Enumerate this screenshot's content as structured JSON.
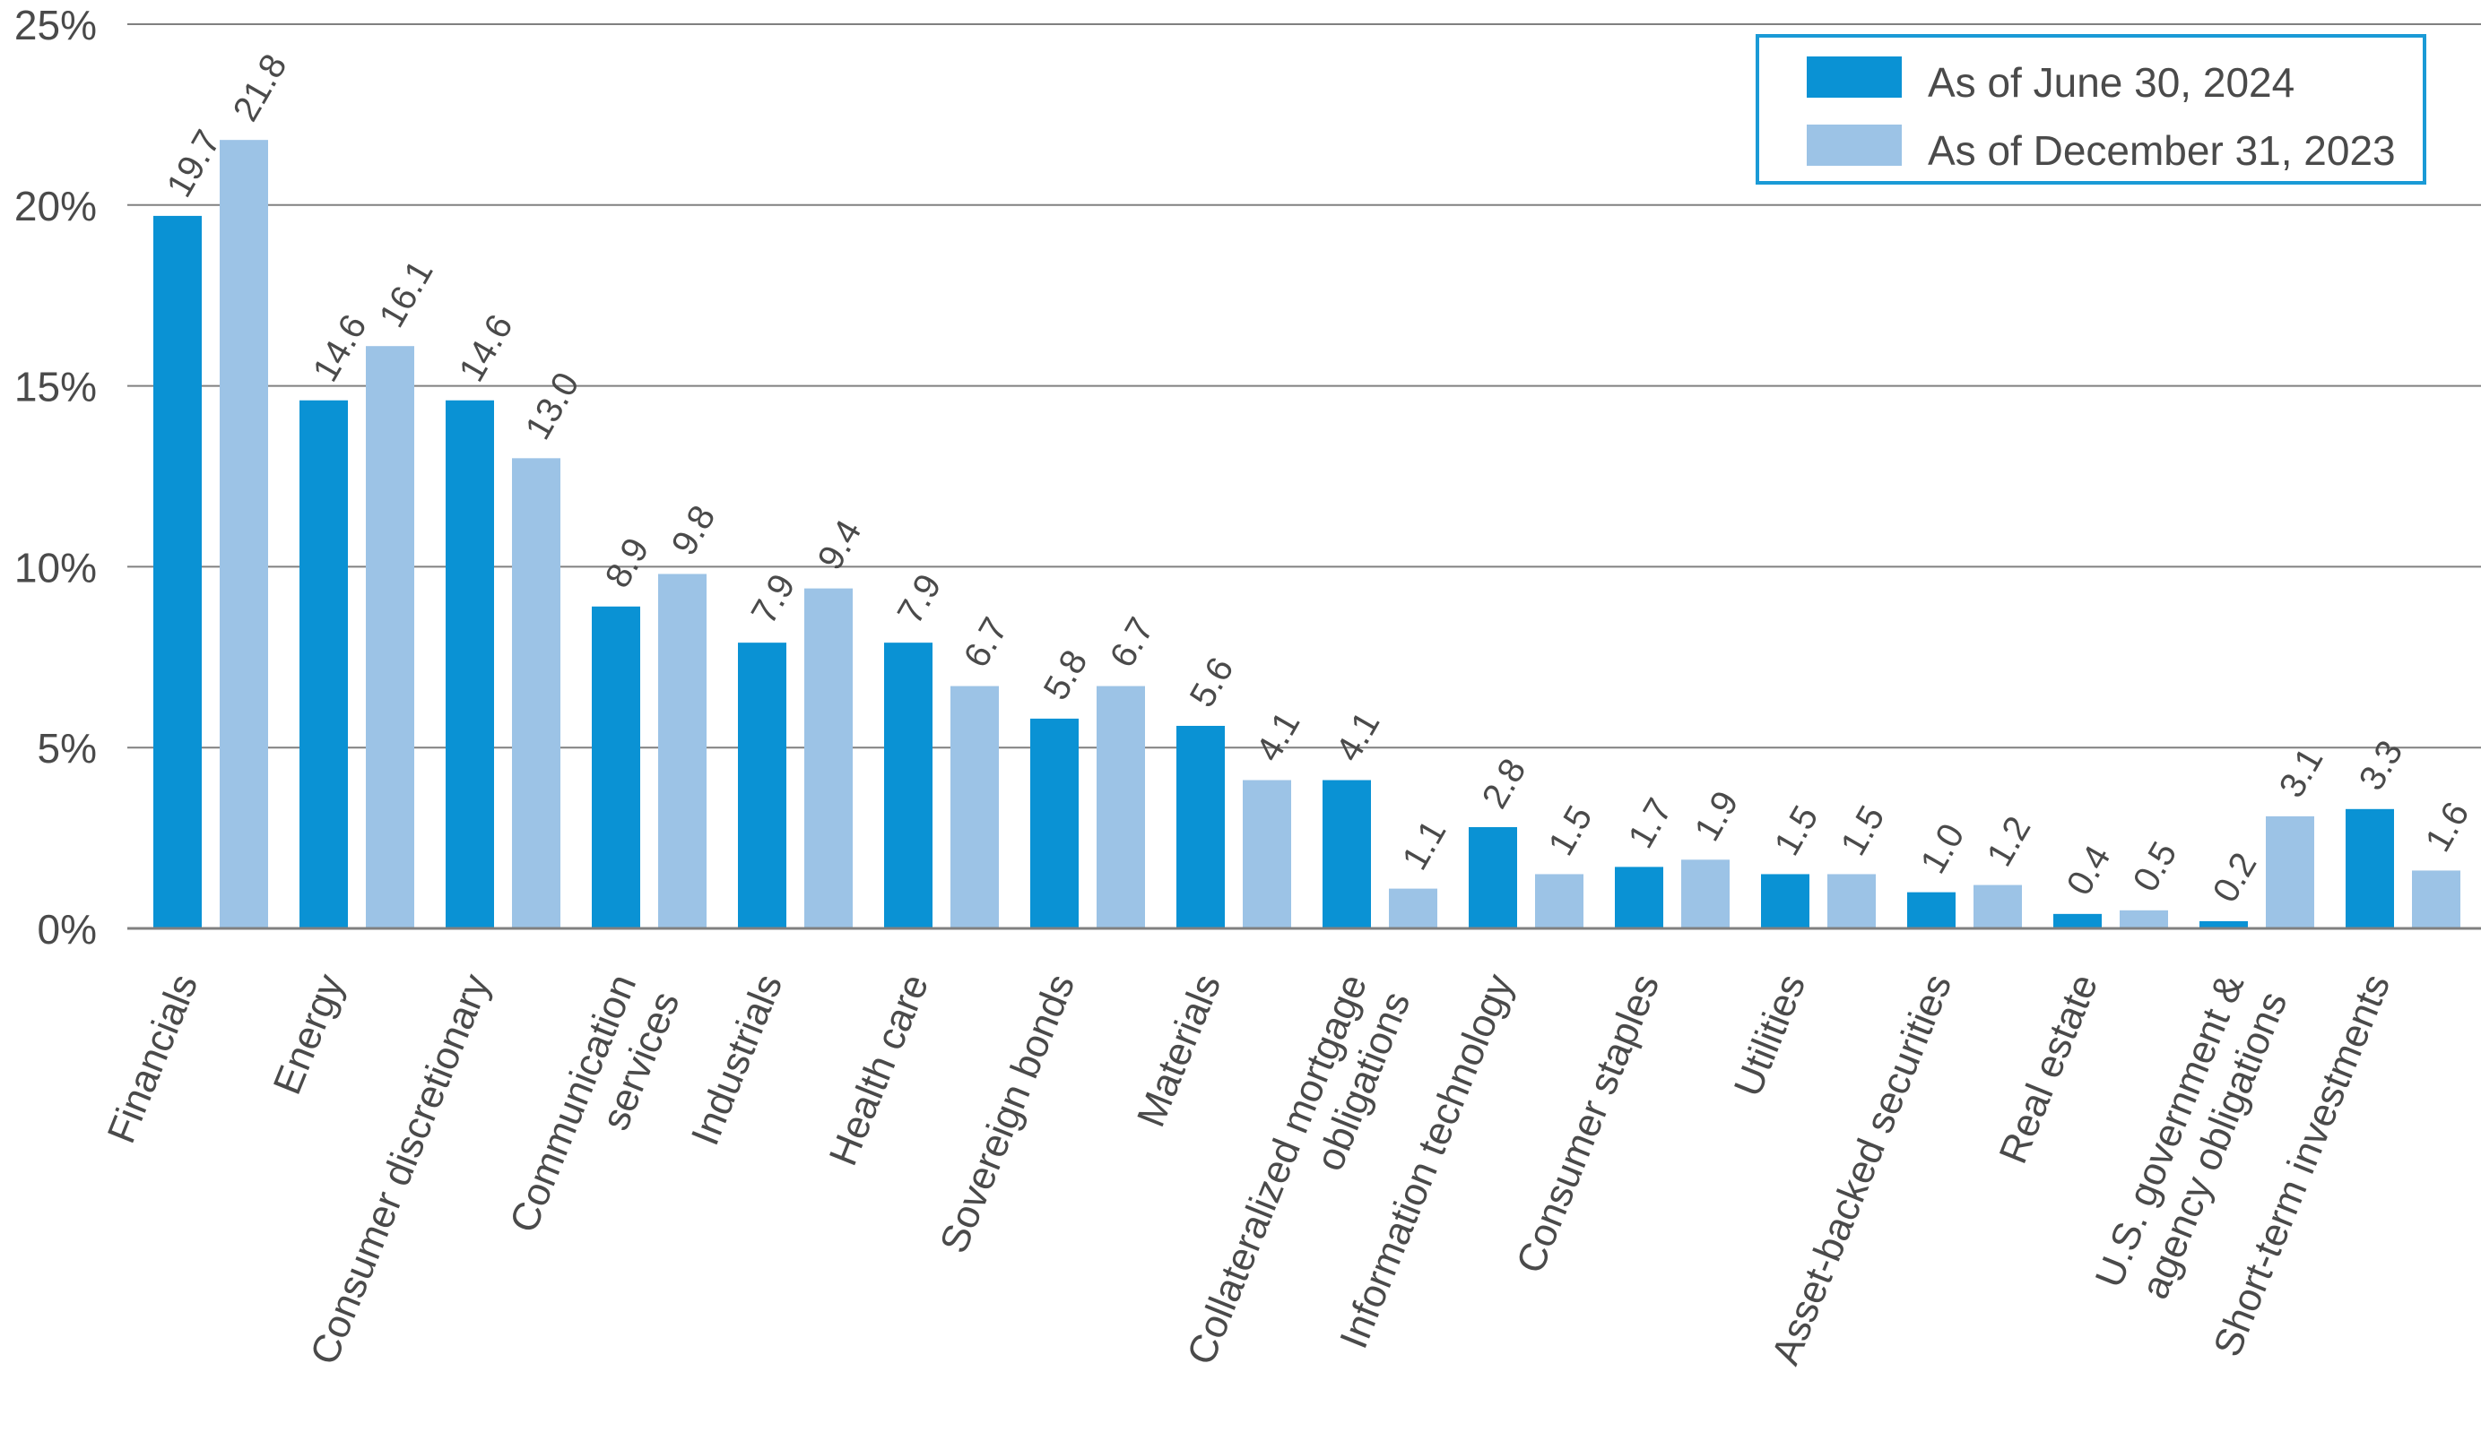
{
  "chart_data": {
    "type": "bar",
    "title": "",
    "xlabel": "",
    "ylabel": "",
    "ylim": [
      0,
      25
    ],
    "yticks": [
      0,
      5,
      10,
      15,
      20,
      25
    ],
    "ytick_labels": [
      "0%",
      "5%",
      "10%",
      "15%",
      "20%",
      "25%"
    ],
    "grid": true,
    "legend_position": "top-right",
    "categories": [
      [
        "Financials"
      ],
      [
        "Energy"
      ],
      [
        "Consumer discretionary"
      ],
      [
        "Communication",
        "services"
      ],
      [
        "Industrials"
      ],
      [
        "Health care"
      ],
      [
        "Sovereign bonds"
      ],
      [
        "Materials"
      ],
      [
        "Collateralized mortgage",
        "obligations"
      ],
      [
        "Information technology"
      ],
      [
        "Consumer staples"
      ],
      [
        "Utilities"
      ],
      [
        "Asset-backed securities"
      ],
      [
        "Real estate"
      ],
      [
        "U.S. government &",
        "agency obligations"
      ],
      [
        "Short-term investments"
      ]
    ],
    "series": [
      {
        "name": "As of June 30, 2024",
        "color": "#0a92d4",
        "values": [
          19.7,
          14.6,
          14.6,
          8.9,
          7.9,
          7.9,
          5.8,
          5.6,
          4.1,
          2.8,
          1.7,
          1.5,
          1.0,
          0.4,
          0.2,
          3.3
        ],
        "labels": [
          "19.7",
          "14.6",
          "14.6",
          "8.9",
          "7.9",
          "7.9",
          "5.8",
          "5.6",
          "4.1",
          "2.8",
          "1.7",
          "1.5",
          "1.0",
          "0.4",
          "0.2",
          "3.3"
        ]
      },
      {
        "name": "As of December 31, 2023",
        "color": "#9cc3e6",
        "values": [
          21.8,
          16.1,
          13.0,
          9.8,
          9.4,
          6.7,
          6.7,
          4.1,
          1.1,
          1.5,
          1.9,
          1.5,
          1.2,
          0.5,
          3.1,
          1.6
        ],
        "labels": [
          "21.8",
          "16.1",
          "13.0",
          "9.8",
          "9.4",
          "6.7",
          "6.7",
          "4.1",
          "1.1",
          "1.5",
          "1.9",
          "1.5",
          "1.2",
          "0.5",
          "3.1",
          "1.6"
        ]
      }
    ],
    "gridline_color": "#808080",
    "legend_border_color": "#1a9ad6",
    "text_color": "#4a4a4a"
  }
}
